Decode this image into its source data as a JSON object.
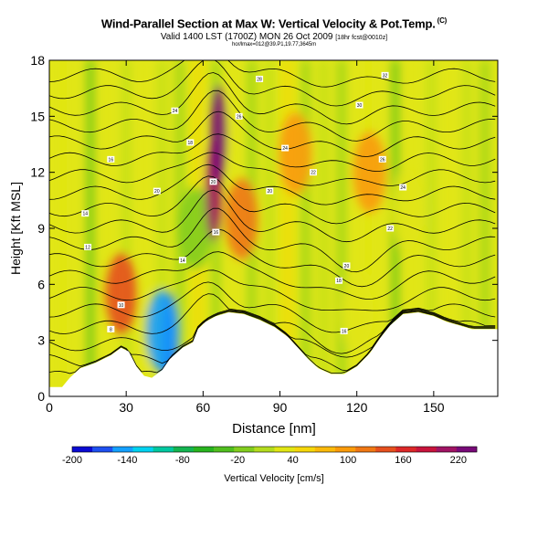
{
  "header": {
    "title": "Wind-Parallel Section at Max W: Vertical Velocity & Pot.Temp.",
    "title_tag": "(C)",
    "valid_line": "Valid 1400 LST (1700Z) MON 26 Oct 2009",
    "valid_tag": "[18hr fcst@0010z]",
    "fine_print": "hor/lmax=012@39.P1,19.77,3645m"
  },
  "chart_data": {
    "type": "heatmap",
    "xlabel": "Distance [nm]",
    "ylabel": "Height [Kft MSL]",
    "xlim": [
      0,
      175
    ],
    "ylim": [
      0,
      18
    ],
    "xticks": [
      0,
      30,
      60,
      90,
      120,
      150
    ],
    "yticks": [
      0,
      3,
      6,
      9,
      12,
      15,
      18
    ],
    "colorbar": {
      "label": "Vertical Velocity [cm/s]",
      "range": [
        -200,
        240
      ],
      "tick_values": [
        -200,
        -140,
        -80,
        -20,
        40,
        100,
        160,
        220
      ],
      "colors": [
        "#0a0ad2",
        "#1e50f0",
        "#14a0ff",
        "#00d2f0",
        "#00c8a0",
        "#14b450",
        "#28b41e",
        "#50be1e",
        "#82cd1e",
        "#b4dc1e",
        "#e1e614",
        "#f5d70a",
        "#fab90a",
        "#fa9b0a",
        "#f07814",
        "#e6501e",
        "#dc2828",
        "#c8143c",
        "#a01464",
        "#780a78"
      ]
    },
    "terrain_kft": [
      [
        0,
        0.5
      ],
      [
        5,
        0.5
      ],
      [
        8,
        1
      ],
      [
        12,
        1.5
      ],
      [
        18,
        1.8
      ],
      [
        24,
        2.2
      ],
      [
        28,
        2.6
      ],
      [
        31,
        2.4
      ],
      [
        34,
        1.6
      ],
      [
        37,
        1.1
      ],
      [
        40,
        1
      ],
      [
        44,
        1.4
      ],
      [
        47,
        2
      ],
      [
        52,
        2.6
      ],
      [
        56,
        2.9
      ],
      [
        58,
        3.6
      ],
      [
        61,
        4
      ],
      [
        65,
        4.3
      ],
      [
        70,
        4.5
      ],
      [
        76,
        4.4
      ],
      [
        82,
        4.1
      ],
      [
        88,
        3.7
      ],
      [
        93,
        3.2
      ],
      [
        97,
        2.6
      ],
      [
        101,
        2
      ],
      [
        105,
        1.5
      ],
      [
        110,
        1.2
      ],
      [
        115,
        1.2
      ],
      [
        120,
        1.6
      ],
      [
        125,
        2.3
      ],
      [
        129,
        3.1
      ],
      [
        133,
        3.8
      ],
      [
        138,
        4.4
      ],
      [
        144,
        4.5
      ],
      [
        150,
        4.3
      ],
      [
        155,
        4
      ],
      [
        160,
        3.8
      ],
      [
        165,
        3.6
      ],
      [
        175,
        3.6
      ]
    ],
    "vertical_velocity_cells": [
      {
        "x": 47,
        "y": 2.8,
        "value": -200
      },
      {
        "x": 44,
        "y": 3.5,
        "value": -140
      },
      {
        "x": 57,
        "y": 9,
        "value": -20
      },
      {
        "x": 64,
        "y": 11,
        "value": 200
      },
      {
        "x": 66,
        "y": 14,
        "value": 220
      },
      {
        "x": 28,
        "y": 5.5,
        "value": 130
      },
      {
        "x": 75,
        "y": 9.5,
        "value": 110
      },
      {
        "x": 96,
        "y": 13,
        "value": 100
      },
      {
        "x": 125,
        "y": 12,
        "value": 100
      },
      {
        "x": 140,
        "y": 10,
        "value": 40
      },
      {
        "x": 120,
        "y": 4.5,
        "value": 40
      }
    ],
    "isentrope_labels": [
      {
        "x": 24,
        "y": 12.7,
        "text": "16"
      },
      {
        "x": 14,
        "y": 9.8,
        "text": "14"
      },
      {
        "x": 15,
        "y": 8,
        "text": "12"
      },
      {
        "x": 28,
        "y": 4.9,
        "text": "10"
      },
      {
        "x": 24,
        "y": 3.6,
        "text": "8"
      },
      {
        "x": 55,
        "y": 13.6,
        "text": "18"
      },
      {
        "x": 42,
        "y": 11,
        "text": "20"
      },
      {
        "x": 49,
        "y": 15.3,
        "text": "24"
      },
      {
        "x": 82,
        "y": 17,
        "text": "28"
      },
      {
        "x": 74,
        "y": 15,
        "text": "26"
      },
      {
        "x": 92,
        "y": 13.3,
        "text": "24"
      },
      {
        "x": 103,
        "y": 12,
        "text": "22"
      },
      {
        "x": 86,
        "y": 11,
        "text": "20"
      },
      {
        "x": 52,
        "y": 7.3,
        "text": "14"
      },
      {
        "x": 65,
        "y": 8.8,
        "text": "16"
      },
      {
        "x": 64,
        "y": 11.5,
        "text": "20"
      },
      {
        "x": 131,
        "y": 17.2,
        "text": "32"
      },
      {
        "x": 121,
        "y": 15.6,
        "text": "30"
      },
      {
        "x": 130,
        "y": 12.7,
        "text": "26"
      },
      {
        "x": 138,
        "y": 11.2,
        "text": "24"
      },
      {
        "x": 133,
        "y": 9,
        "text": "22"
      },
      {
        "x": 116,
        "y": 7,
        "text": "20"
      },
      {
        "x": 113,
        "y": 6.2,
        "text": "18"
      },
      {
        "x": 115,
        "y": 3.5,
        "text": "16"
      }
    ]
  }
}
